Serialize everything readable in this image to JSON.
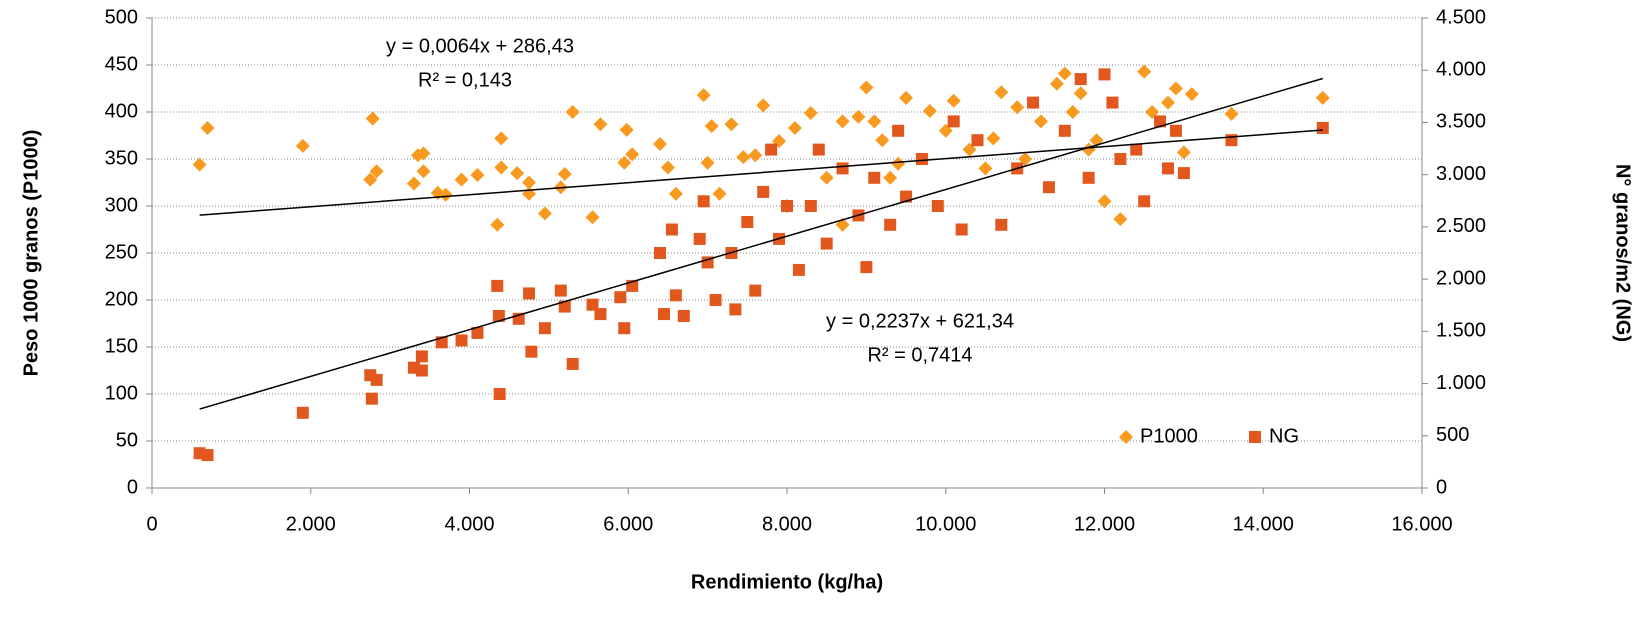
{
  "chart_data": {
    "type": "scatter",
    "xlabel": "Rendimiento (kg/ha)",
    "ylabel": "Peso 1000 granos (P1000)",
    "y2label": "N° granos/m2 (NG)",
    "xlim": [
      0,
      16000
    ],
    "xticks": [
      0,
      {
        "value": 2000,
        "label": "2.000"
      },
      {
        "value": 4000,
        "label": "4.000"
      },
      {
        "value": 6000,
        "label": "6.000"
      },
      {
        "value": 8000,
        "label": "8.000"
      },
      {
        "value": 10000,
        "label": "10.000"
      },
      {
        "value": 12000,
        "label": "12.000"
      },
      {
        "value": 14000,
        "label": "14.000"
      },
      {
        "value": 16000,
        "label": "16.000"
      }
    ],
    "ylim": [
      0,
      500
    ],
    "yticks": [
      0,
      50,
      100,
      150,
      200,
      250,
      300,
      350,
      400,
      450,
      500
    ],
    "y2lim": [
      0,
      4500
    ],
    "y2ticks": [
      0,
      500,
      {
        "value": 1000,
        "label": "1.000"
      },
      {
        "value": 1500,
        "label": "1.500"
      },
      {
        "value": 2000,
        "label": "2.000"
      },
      {
        "value": 2500,
        "label": "2.500"
      },
      {
        "value": 3000,
        "label": "3.000"
      },
      {
        "value": 3500,
        "label": "3.500"
      },
      {
        "value": 4000,
        "label": "4.000"
      },
      {
        "value": 4500,
        "label": "4.500"
      }
    ],
    "grid": true,
    "legend": "lower right",
    "annotations": [
      "y = 0,0064x + 286,43",
      "R² = 0,143",
      "y = 0,2237x + 621,34",
      "R² = 0,7414"
    ],
    "series": [
      {
        "name": "P1000",
        "color": "#f79a1f",
        "marker": "diamond",
        "axis": "y",
        "x": [
          600,
          700,
          1900,
          2750,
          2780,
          2830,
          3300,
          3350,
          3420,
          3420,
          3600,
          3700,
          3900,
          4100,
          4350,
          4400,
          4400,
          4600,
          4750,
          4750,
          4950,
          5150,
          5200,
          5300,
          5550,
          5650,
          5950,
          5980,
          6050,
          6400,
          6500,
          6600,
          6950,
          7000,
          7050,
          7150,
          7300,
          7450,
          7600,
          7700,
          7900,
          8100,
          8300,
          8500,
          8700,
          8900,
          9000,
          9100,
          9200,
          9400,
          9500,
          9800,
          10000,
          10100,
          10300,
          10600,
          10700,
          10900,
          11200,
          11400,
          11500,
          11600,
          11700,
          11900,
          12000,
          12200,
          12500,
          12600,
          12800,
          12900,
          13000,
          13100,
          13600,
          14750,
          8000,
          8700,
          9300,
          10500,
          11000,
          11800
        ],
        "values": [
          344,
          383,
          364,
          328,
          393,
          337,
          324,
          354,
          356,
          337,
          314,
          312,
          328,
          333,
          280,
          341,
          372,
          335,
          325,
          313,
          292,
          320,
          334,
          400,
          288,
          387,
          346,
          381,
          355,
          366,
          341,
          313,
          418,
          346,
          385,
          313,
          387,
          352,
          354,
          407,
          369,
          383,
          399,
          330,
          390,
          395,
          426,
          390,
          370,
          345,
          415,
          401,
          380,
          412,
          360,
          372,
          421,
          405,
          390,
          430,
          441,
          400,
          420,
          370,
          305,
          286,
          443,
          400,
          410,
          425,
          357,
          419,
          398,
          415,
          300,
          280,
          330,
          340,
          350,
          360
        ],
        "trendline": {
          "x": [
            600,
            14750
          ],
          "values": [
            290.27,
            380.83
          ]
        }
      },
      {
        "name": "NG",
        "color": "#e2571d",
        "marker": "square",
        "axis": "y2",
        "x": [
          600,
          700,
          1900,
          2750,
          2770,
          2830,
          3300,
          3400,
          3400,
          3650,
          3900,
          4100,
          4350,
          4370,
          4380,
          4620,
          4750,
          4780,
          4950,
          5150,
          5200,
          5300,
          5550,
          5650,
          5900,
          5950,
          6050,
          6400,
          6450,
          6550,
          6600,
          6700,
          6900,
          6950,
          7000,
          7100,
          7300,
          7350,
          7500,
          7600,
          7700,
          7800,
          7900,
          8000,
          8150,
          8300,
          8400,
          8500,
          8700,
          8900,
          9000,
          9100,
          9300,
          9400,
          9500,
          9700,
          9900,
          10100,
          10200,
          10400,
          10700,
          10900,
          11100,
          11300,
          11500,
          11700,
          11800,
          12000,
          12100,
          12200,
          12400,
          12500,
          12700,
          12800,
          12900,
          13000,
          13600,
          14750
        ],
        "values": [
          333,
          315,
          720,
          1080,
          855,
          1035,
          1152,
          1260,
          1125,
          1395,
          1413,
          1485,
          1935,
          1647,
          900,
          1620,
          1863,
          1305,
          1530,
          1890,
          1737,
          1188,
          1755,
          1665,
          1827,
          1530,
          1935,
          2250,
          1665,
          2475,
          1845,
          1647,
          2385,
          2745,
          2160,
          1800,
          2250,
          1710,
          2547,
          1890,
          2835,
          3240,
          2385,
          2700,
          2088,
          2700,
          3240,
          2340,
          3060,
          2610,
          2115,
          2970,
          2520,
          3420,
          2790,
          3150,
          2700,
          3510,
          2475,
          3330,
          2520,
          3060,
          3690,
          2880,
          3420,
          3915,
          2970,
          3960,
          3690,
          3150,
          3240,
          2745,
          3510,
          3060,
          3420,
          3015,
          3330,
          3447
        ],
        "trendline": {
          "x": [
            600,
            14750
          ],
          "values": [
            755.6,
            3920.9
          ]
        }
      }
    ]
  }
}
